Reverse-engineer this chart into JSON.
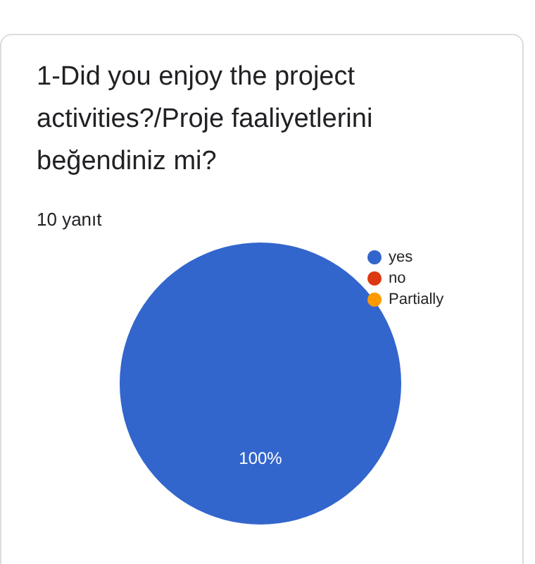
{
  "chart_data": {
    "type": "pie",
    "title": "1-Did you enjoy the project activities?/Proje faaliyetlerini beğendiniz mi?",
    "subtitle": "10 yanıt",
    "categories": [
      "yes",
      "no",
      "Partially"
    ],
    "values": [
      100,
      0,
      0
    ],
    "colors": [
      "#3366cc",
      "#dc3912",
      "#ff9900"
    ],
    "value_labels": [
      "100%",
      null,
      null
    ],
    "legend": "right"
  }
}
